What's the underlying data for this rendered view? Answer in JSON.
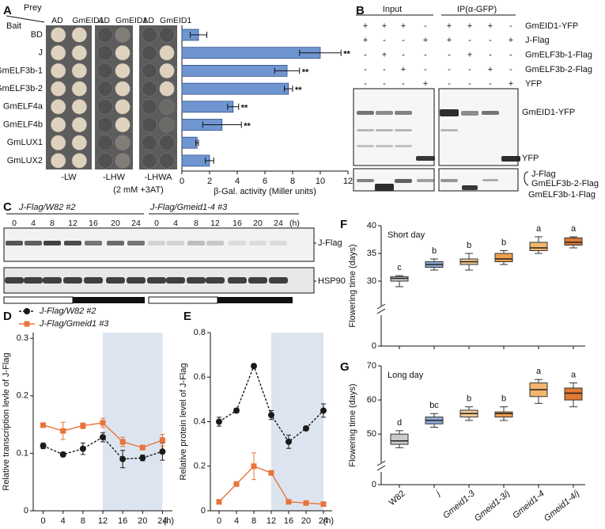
{
  "panel_labels": [
    "A",
    "B",
    "C",
    "D",
    "E",
    "F",
    "G"
  ],
  "panel_a": {
    "bait_label": "Bait",
    "prey_label": "Prey",
    "prey_headers": [
      "AD",
      "GmEID1",
      "AD",
      "GmEID1",
      "AD",
      "GmEID1"
    ],
    "media": [
      "-LW",
      "-LHW",
      "-LHWA"
    ],
    "media_note": "(2 mM  +3AT)"
  },
  "panel_b": {
    "group_labels": [
      "Input",
      "IP(α-GFP)"
    ],
    "rows": [
      {
        "name": "GmEID1-YFP",
        "signs": [
          "+",
          "+",
          "+",
          "-",
          "+",
          "+",
          "+",
          "-"
        ]
      },
      {
        "name": "J-Flag",
        "signs": [
          "+",
          "-",
          "-",
          "+",
          "+",
          "-",
          "-",
          "+"
        ]
      },
      {
        "name": "GmELF3b-1-Flag",
        "signs": [
          "-",
          "+",
          "-",
          "-",
          "-",
          "+",
          "-",
          "-"
        ]
      },
      {
        "name": "GmELF3b-2-Flag",
        "signs": [
          "-",
          "-",
          "+",
          "-",
          "-",
          "-",
          "+",
          "-"
        ]
      },
      {
        "name": "YFP",
        "signs": [
          "-",
          "-",
          "-",
          "+",
          "-",
          "-",
          "-",
          "+"
        ]
      }
    ],
    "band_labels": [
      "GmEID1-YFP",
      "YFP",
      "J-Flag",
      "GmELF3b-2-Flag",
      "GmELF3b-1-Flag"
    ]
  },
  "panel_c": {
    "groups": [
      "J-Flag/W82 #2",
      "J-Flag/Gmeid1-4 #3"
    ],
    "lanes": [
      [
        0,
        4,
        8,
        12,
        16,
        20,
        24
      ],
      [
        0,
        4,
        8,
        12,
        16,
        20,
        24
      ]
    ],
    "unit": "(h)",
    "band_labels": [
      "J-Flag",
      "HSP90"
    ]
  },
  "chart_data": [
    {
      "type": "bar",
      "orientation": "horizontal",
      "color": "#7096d1",
      "categories": [
        "BD",
        "J",
        "GmELF3b-1",
        "GmELF3b-2",
        "GmELF4a",
        "GmELF4b",
        "GmLUX1",
        "GmLUX2"
      ],
      "values": [
        1.2,
        10.0,
        7.6,
        7.7,
        3.7,
        2.9,
        1.1,
        2.0
      ],
      "errors": [
        0.6,
        1.5,
        0.9,
        0.3,
        0.4,
        1.4,
        0.1,
        0.3
      ],
      "significance": [
        null,
        "**",
        "**",
        "**",
        "**",
        "**",
        null,
        null
      ],
      "xlim": [
        0,
        12
      ],
      "xticks": [
        0,
        2,
        4,
        6,
        8,
        10,
        12
      ],
      "x_label": "β-Gal. activity (Miller units)"
    },
    {
      "type": "line",
      "y_label": "Relative transcription levle of J-Flag",
      "x": [
        0,
        4,
        8,
        12,
        16,
        20,
        24
      ],
      "xlim": [
        -2,
        26
      ],
      "xticks": [
        0,
        4,
        8,
        12,
        16,
        20,
        24
      ],
      "x_unit": "(h)",
      "ylim": [
        0,
        0.31
      ],
      "yticks": [
        0,
        0.1,
        0.2,
        0.3
      ],
      "shade": [
        12,
        24
      ],
      "shade_color": "#dce5ef",
      "series": [
        {
          "name": "J-Flag/W82 #2",
          "color": "#1a1a1a",
          "marker": "circle",
          "dashed": true,
          "values": [
            0.113,
            0.098,
            0.108,
            0.128,
            0.09,
            0.092,
            0.103
          ],
          "errors": [
            0.005,
            0.004,
            0.01,
            0.008,
            0.015,
            0.005,
            0.015
          ]
        },
        {
          "name": "J-Flag/Gmeid1 #3",
          "color": "#e8743b",
          "marker": "square",
          "dashed": false,
          "values": [
            0.149,
            0.139,
            0.148,
            0.153,
            0.12,
            0.11,
            0.123
          ],
          "errors": [
            0.003,
            0.015,
            0.005,
            0.008,
            0.008,
            0.004,
            0.01
          ]
        }
      ]
    },
    {
      "type": "line",
      "y_label": "Relative protein level of J-Flag",
      "x": [
        0,
        4,
        8,
        12,
        16,
        20,
        24
      ],
      "xlim": [
        -2,
        26
      ],
      "xticks": [
        0,
        4,
        8,
        12,
        16,
        20,
        24
      ],
      "x_unit": "(h)",
      "ylim": [
        0,
        0.8
      ],
      "yticks": [
        0,
        0.2,
        0.4,
        0.6,
        0.8
      ],
      "shade": [
        12,
        24
      ],
      "shade_color": "#dce5ef",
      "series": [
        {
          "color": "#1a1a1a",
          "marker": "circle",
          "dashed": true,
          "values": [
            0.4,
            0.45,
            0.65,
            0.43,
            0.31,
            0.37,
            0.45
          ],
          "errors": [
            0.02,
            0.01,
            0.01,
            0.02,
            0.03,
            0.01,
            0.03
          ]
        },
        {
          "color": "#e8743b",
          "marker": "square",
          "dashed": false,
          "values": [
            0.04,
            0.12,
            0.2,
            0.17,
            0.04,
            0.035,
            0.03
          ],
          "errors": [
            0.005,
            0.005,
            0.06,
            0.005,
            0.005,
            0.003,
            0.003
          ]
        }
      ]
    },
    {
      "type": "box",
      "title": "Short day",
      "y_label": "Flowering time (days)",
      "categories": [
        null,
        null,
        null,
        null,
        null,
        null
      ],
      "colors": [
        "#c9c9c9",
        "#8fa9da",
        "#f5cb92",
        "#ef9d4f",
        "#f3b66c",
        "#e07a33"
      ],
      "boxes": [
        {
          "min": 29,
          "q1": 30,
          "median": 30.5,
          "q3": 30.8,
          "max": 31
        },
        {
          "min": 32,
          "q1": 32.5,
          "median": 33,
          "q3": 33.5,
          "max": 34
        },
        {
          "min": 32,
          "q1": 33,
          "median": 33.5,
          "q3": 34,
          "max": 35
        },
        {
          "min": 33,
          "q1": 33.5,
          "median": 34,
          "q3": 35,
          "max": 35.5
        },
        {
          "min": 35,
          "q1": 35.5,
          "median": 36,
          "q3": 37,
          "max": 38
        },
        {
          "min": 36,
          "q1": 36.5,
          "median": 37,
          "q3": 37.8,
          "max": 38
        }
      ],
      "letters": [
        "c",
        "b",
        "b",
        "b",
        "a",
        "a"
      ],
      "ylim": [
        27,
        40
      ],
      "yticks": [
        0,
        30,
        35,
        40
      ],
      "axis_break": true
    },
    {
      "type": "box",
      "title": "Long day",
      "y_label": "Flowering time (days)",
      "categories": [
        "W82",
        "j",
        "Gmeid1-3",
        "Gmeid1-3/j",
        "Gmeid1-4",
        "Gmeid1-4/j"
      ],
      "colors": [
        "#c9c9c9",
        "#8fa9da",
        "#f5cb92",
        "#ef9d4f",
        "#f3b66c",
        "#e07a33"
      ],
      "boxes": [
        {
          "min": 46,
          "q1": 47,
          "median": 48,
          "q3": 50,
          "max": 51
        },
        {
          "min": 52,
          "q1": 53,
          "median": 54,
          "q3": 55,
          "max": 56
        },
        {
          "min": 54,
          "q1": 55,
          "median": 56,
          "q3": 57,
          "max": 58
        },
        {
          "min": 54,
          "q1": 55,
          "median": 56,
          "q3": 56.5,
          "max": 58
        },
        {
          "min": 59,
          "q1": 61,
          "median": 63,
          "q3": 65,
          "max": 66
        },
        {
          "min": 58,
          "q1": 60,
          "median": 62,
          "q3": 63.5,
          "max": 65
        }
      ],
      "letters": [
        "d",
        "bc",
        "b",
        "b",
        "a",
        "a"
      ],
      "ylim": [
        44,
        70
      ],
      "yticks": [
        0,
        50,
        60,
        70
      ],
      "axis_break": true
    }
  ]
}
